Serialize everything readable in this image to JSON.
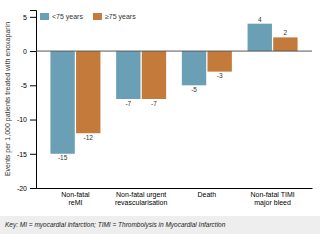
{
  "chart_data": {
    "type": "bar",
    "categories": [
      "Non-fatal\nreMI",
      "Non-fatal urgent\nrevascularisation",
      "Death",
      "Non-fatal TIMI\nmajor bleed"
    ],
    "series": [
      {
        "name": "<75 years",
        "color": "#6a9fb5",
        "values": [
          -15,
          -7,
          -5,
          4
        ]
      },
      {
        "name": "≥75 years",
        "color": "#c47a3a",
        "values": [
          -12,
          -7,
          -3,
          2
        ]
      }
    ],
    "ylabel": "Events per 1,000 patients treated with enoxaparin",
    "ylim": [
      -20,
      6
    ],
    "yticks": [
      -20,
      -15,
      -10,
      -5,
      0,
      5
    ],
    "grid": false,
    "legend": "upper left",
    "data_labels": true,
    "annotations": [
      "Key: MI = myocardial infarction; TIMI = Thrombolysis in Myocardial Infarction"
    ]
  }
}
